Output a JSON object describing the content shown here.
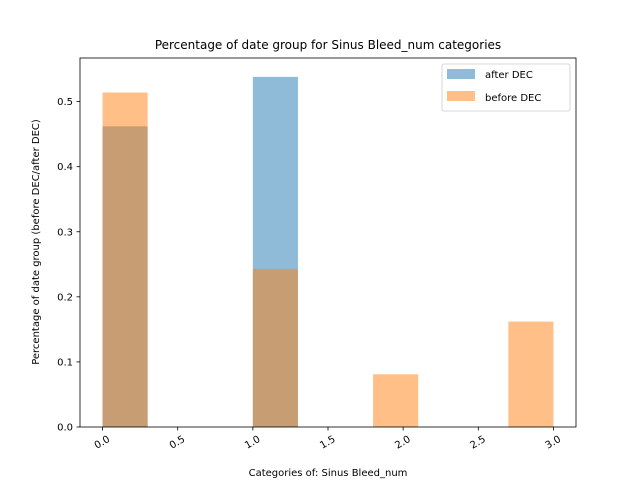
{
  "chart_data": {
    "type": "bar",
    "title": "Percentage of date group for Sinus Bleed_num categories",
    "xlabel": "Categories of: Sinus Bleed_num",
    "ylabel": "Percentage of date group (before DEC/after DEC)",
    "xlim": [
      -0.15,
      3.15
    ],
    "ylim": [
      0,
      0.567
    ],
    "xticks": [
      "0.0",
      "0.5",
      "1.0",
      "1.5",
      "2.0",
      "2.5",
      "3.0"
    ],
    "yticks": [
      "0.0",
      "0.1",
      "0.2",
      "0.3",
      "0.4",
      "0.5"
    ],
    "bin_width": 0.3,
    "legend_position": "upper-right",
    "grid": false,
    "series": [
      {
        "name": "after DEC",
        "color": "#1f77b4",
        "alpha": 0.5,
        "bins": [
          {
            "x0": 0.0,
            "value": 0.462
          },
          {
            "x0": 1.0,
            "value": 0.538
          }
        ]
      },
      {
        "name": "before DEC",
        "color": "#ff7f0e",
        "alpha": 0.5,
        "bins": [
          {
            "x0": 0.0,
            "value": 0.514
          },
          {
            "x0": 1.0,
            "value": 0.243
          },
          {
            "x0": 1.8,
            "value": 0.081
          },
          {
            "x0": 2.7,
            "value": 0.162
          }
        ]
      }
    ]
  }
}
